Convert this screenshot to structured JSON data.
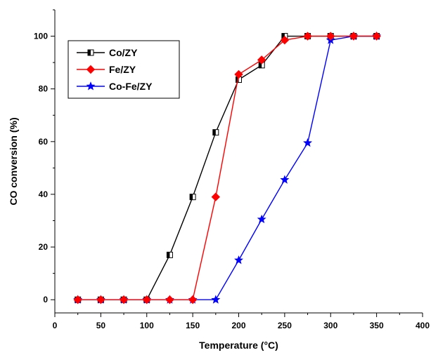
{
  "chart_data": {
    "type": "line",
    "xlabel": "Temperature (°C)",
    "ylabel": "CO conversion (%)",
    "xlim": [
      0,
      400
    ],
    "ylim": [
      -5,
      110
    ],
    "xticks": [
      0,
      50,
      100,
      150,
      200,
      250,
      300,
      350,
      400
    ],
    "yticks": [
      0,
      20,
      40,
      60,
      80,
      100
    ],
    "grid": false,
    "legend_position": "top-left",
    "series": [
      {
        "name": "Co/ZY",
        "color": "#000000",
        "marker": "half-filled-square",
        "x": [
          25,
          50,
          75,
          100,
          125,
          150,
          175,
          200,
          225,
          250,
          275,
          300,
          325,
          350
        ],
        "y": [
          0,
          0,
          0,
          0,
          17,
          39,
          63.5,
          83.5,
          89,
          100,
          100,
          100,
          100,
          100
        ]
      },
      {
        "name": "Fe/ZY",
        "color": "#ff0000",
        "marker": "diamond",
        "x": [
          25,
          50,
          75,
          100,
          125,
          150,
          175,
          200,
          225,
          250,
          275,
          300,
          325,
          350
        ],
        "y": [
          0,
          0,
          0,
          0,
          0,
          0,
          39,
          85.5,
          91,
          98.5,
          100,
          100,
          100,
          100
        ]
      },
      {
        "name": "Co-Fe/ZY",
        "color": "#0000ff",
        "marker": "star",
        "x": [
          25,
          50,
          75,
          100,
          125,
          150,
          175,
          200,
          225,
          250,
          275,
          300,
          325,
          350
        ],
        "y": [
          0,
          0,
          0,
          0,
          0,
          0,
          0,
          15,
          30.5,
          45.5,
          59.5,
          98.5,
          100,
          100
        ]
      }
    ]
  }
}
